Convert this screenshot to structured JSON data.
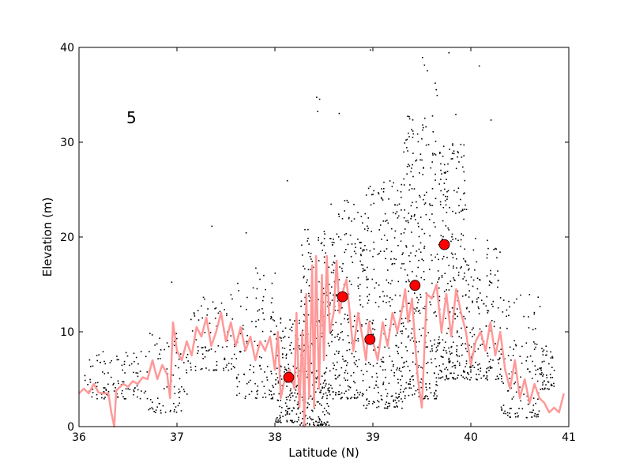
{
  "chart_data": {
    "type": "scatter",
    "title": "",
    "annotation": "5",
    "xlabel": "Latitude (N)",
    "ylabel": "Elevation (m)",
    "xlim": [
      36,
      41
    ],
    "ylim": [
      0,
      40
    ],
    "xticks": [
      "36",
      "37",
      "38",
      "39",
      "40",
      "41"
    ],
    "yticks": [
      "0",
      "10",
      "20",
      "30",
      "40"
    ],
    "grid": false,
    "legend": "none",
    "series": [
      {
        "kind": "scatter-dots",
        "color": "#000000",
        "clusters": [
          {
            "x": [
              36.05,
              36.35
            ],
            "y": [
              3.0,
              8.0
            ],
            "density": 50
          },
          {
            "x": [
              36.35,
              36.7
            ],
            "y": [
              3.0,
              8.0
            ],
            "density": 60
          },
          {
            "x": [
              36.7,
              37.1
            ],
            "y": [
              1.5,
              10.0
            ],
            "density": 80
          },
          {
            "x": [
              37.1,
              37.6
            ],
            "y": [
              6.0,
              14.0
            ],
            "density": 90
          },
          {
            "x": [
              37.6,
              38.0
            ],
            "y": [
              3.0,
              17.0
            ],
            "density": 110
          },
          {
            "x": [
              38.0,
              38.25
            ],
            "y": [
              0.5,
              12.0
            ],
            "density": 160
          },
          {
            "x": [
              38.25,
              38.55
            ],
            "y": [
              0.2,
              21.0
            ],
            "density": 260
          },
          {
            "x": [
              38.55,
              38.9
            ],
            "y": [
              3.0,
              24.0
            ],
            "density": 230
          },
          {
            "x": [
              38.9,
              39.3
            ],
            "y": [
              2.0,
              26.0
            ],
            "density": 260
          },
          {
            "x": [
              39.3,
              39.65
            ],
            "y": [
              3.0,
              33.0
            ],
            "density": 300
          },
          {
            "x": [
              39.65,
              39.95
            ],
            "y": [
              5.0,
              30.0
            ],
            "density": 260
          },
          {
            "x": [
              39.95,
              40.3
            ],
            "y": [
              5.0,
              20.0
            ],
            "density": 160
          },
          {
            "x": [
              40.3,
              40.7
            ],
            "y": [
              1.0,
              14.0
            ],
            "density": 130
          },
          {
            "x": [
              40.7,
              40.85
            ],
            "y": [
              4.0,
              9.0
            ],
            "density": 50
          }
        ],
        "outliers": [
          [
            38.42,
            34.8
          ],
          [
            38.45,
            34.6
          ],
          [
            38.43,
            33.3
          ],
          [
            38.65,
            33.1
          ],
          [
            39.35,
            32.8
          ],
          [
            39.5,
            39.0
          ],
          [
            39.52,
            38.2
          ],
          [
            39.55,
            37.6
          ],
          [
            39.77,
            39.5
          ],
          [
            40.08,
            38.1
          ],
          [
            40.2,
            32.4
          ],
          [
            39.84,
            33.0
          ],
          [
            39.64,
            35.6
          ],
          [
            38.97,
            39.8
          ],
          [
            38.8,
            23.5
          ],
          [
            37.35,
            21.2
          ],
          [
            38.12,
            26.0
          ],
          [
            37.7,
            20.5
          ],
          [
            36.94,
            15.3
          ],
          [
            39.63,
            36.3
          ],
          [
            39.65,
            35.0
          ]
        ]
      },
      {
        "kind": "line",
        "color": "#ff9999",
        "x": [
          36.0,
          36.05,
          36.1,
          36.15,
          36.2,
          36.25,
          36.3,
          36.33,
          36.36,
          36.38,
          36.4,
          36.45,
          36.5,
          36.55,
          36.6,
          36.65,
          36.7,
          36.75,
          36.8,
          36.85,
          36.9,
          36.93,
          36.96,
          37.0,
          37.05,
          37.1,
          37.15,
          37.2,
          37.25,
          37.3,
          37.35,
          37.4,
          37.45,
          37.5,
          37.55,
          37.6,
          37.65,
          37.7,
          37.75,
          37.8,
          37.85,
          37.9,
          37.95,
          38.0,
          38.03,
          38.06,
          38.1,
          38.15,
          38.2,
          38.22,
          38.25,
          38.28,
          38.3,
          38.32,
          38.35,
          38.38,
          38.4,
          38.42,
          38.45,
          38.48,
          38.5,
          38.53,
          38.56,
          38.6,
          38.63,
          38.66,
          38.7,
          38.73,
          38.76,
          38.8,
          38.85,
          38.9,
          38.93,
          38.96,
          39.0,
          39.05,
          39.1,
          39.15,
          39.2,
          39.25,
          39.3,
          39.33,
          39.36,
          39.4,
          39.43,
          39.46,
          39.5,
          39.55,
          39.6,
          39.65,
          39.7,
          39.75,
          39.8,
          39.85,
          39.9,
          39.95,
          40.0,
          40.05,
          40.1,
          40.15,
          40.2,
          40.25,
          40.3,
          40.35,
          40.4,
          40.45,
          40.5,
          40.55,
          40.6,
          40.65,
          40.7,
          40.75,
          40.8,
          40.85,
          40.9,
          40.95
        ],
        "y": [
          3.5,
          4.0,
          3.5,
          4.5,
          3.6,
          3.5,
          3.5,
          1.5,
          0.0,
          3.8,
          4.0,
          4.5,
          4.2,
          4.8,
          4.5,
          5.2,
          5.0,
          7.0,
          5.0,
          6.5,
          5.5,
          3.0,
          11.0,
          8.0,
          7.0,
          9.0,
          7.5,
          10.5,
          9.5,
          11.5,
          8.5,
          10.0,
          12.0,
          9.0,
          11.0,
          8.5,
          10.5,
          8.0,
          9.5,
          7.0,
          9.0,
          8.0,
          9.5,
          6.0,
          10.0,
          3.0,
          5.0,
          6.0,
          4.0,
          12.0,
          2.0,
          10.0,
          0.0,
          14.0,
          3.0,
          17.0,
          2.0,
          18.0,
          4.0,
          16.0,
          7.0,
          18.0,
          10.0,
          12.0,
          17.5,
          12.0,
          14.5,
          15.5,
          12.5,
          8.0,
          12.0,
          9.0,
          7.0,
          11.0,
          9.0,
          7.0,
          11.0,
          8.5,
          12.0,
          10.0,
          12.5,
          14.5,
          11.0,
          13.5,
          9.0,
          5.0,
          2.0,
          14.0,
          13.5,
          15.0,
          10.0,
          14.0,
          9.5,
          14.5,
          12.0,
          10.0,
          6.5,
          9.0,
          10.0,
          8.0,
          11.0,
          7.5,
          10.0,
          6.0,
          4.0,
          7.0,
          3.0,
          5.0,
          2.5,
          4.5,
          3.0,
          2.5,
          1.5,
          2.0,
          1.5,
          3.5
        ]
      },
      {
        "kind": "markers",
        "color": "#ff0000",
        "x": [
          38.14,
          38.69,
          38.97,
          39.43,
          39.73
        ],
        "y": [
          5.2,
          13.7,
          9.2,
          14.9,
          19.2
        ]
      }
    ]
  }
}
